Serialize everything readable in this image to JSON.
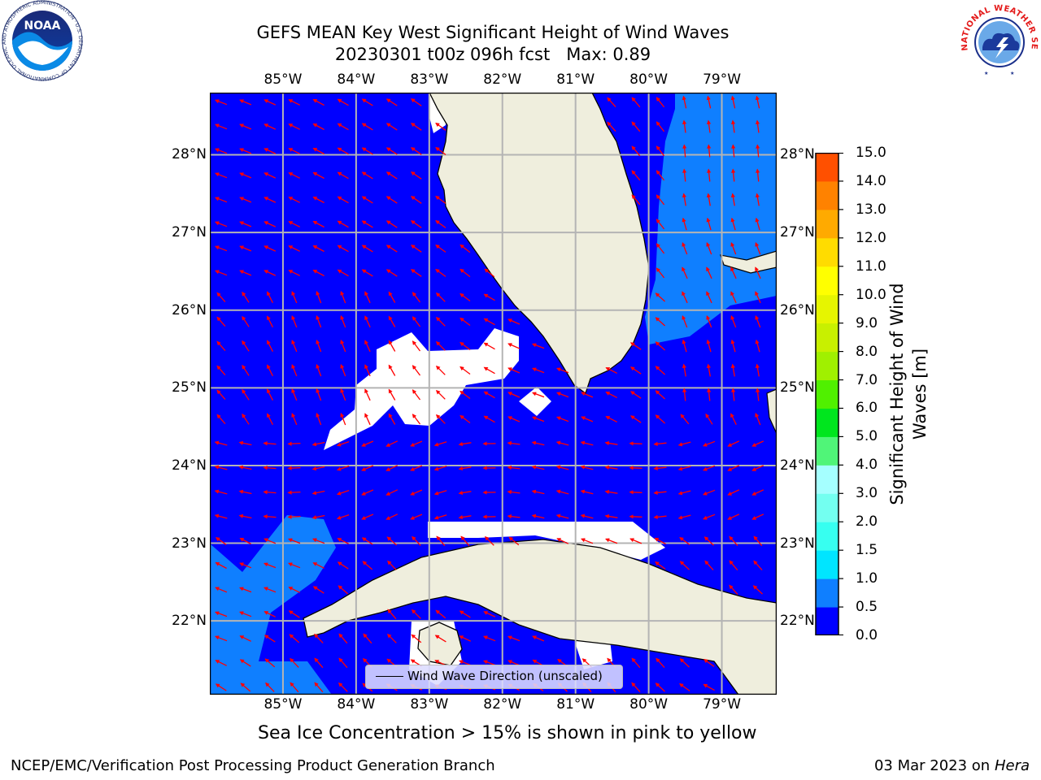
{
  "title": {
    "line1": "GEFS MEAN Key West Significant Height of Wind Waves",
    "line2": "20230301 t00z 096h fcst   Max: 0.89"
  },
  "map": {
    "lon_labels": [
      "85°W",
      "84°W",
      "83°W",
      "82°W",
      "81°W",
      "80°W",
      "79°W"
    ],
    "lat_labels": [
      "28°N",
      "27°N",
      "26°N",
      "25°N",
      "24°N",
      "23°N",
      "22°N"
    ],
    "lon_range": [
      -86.0,
      -78.25
    ],
    "lat_range": [
      21.05,
      28.8
    ],
    "ocean_color": "#0000ff",
    "wave_color": "#0f7fff",
    "land_color": "#efeedd",
    "arrow_color": "#ff0000",
    "grid_color": "#b4b4b4",
    "legend": "Wind Wave Direction (unscaled)"
  },
  "colorbar": {
    "label": "Significant Height of Wind Waves [m]",
    "levels": [
      "0.0",
      "0.5",
      "1.0",
      "1.5",
      "2.0",
      "3.0",
      "4.0",
      "5.0",
      "6.0",
      "7.0",
      "8.0",
      "9.0",
      "10.0",
      "11.0",
      "12.0",
      "13.0",
      "14.0",
      "15.0"
    ],
    "colors": [
      "#0000ff",
      "#0f7fff",
      "#00e5ff",
      "#37fff0",
      "#73fff0",
      "#a5ffff",
      "#50f578",
      "#00e61e",
      "#50f000",
      "#a0f000",
      "#c8f000",
      "#e6f500",
      "#ffff00",
      "#ffdc00",
      "#ffaa00",
      "#ff8200",
      "#ff5000",
      "#ff2800",
      "#ff0000"
    ]
  },
  "footer": {
    "ice_note": "Sea Ice Concentration > 15% is shown in pink to yellow",
    "credit": "NCEP/EMC/Verification Post Processing Product Generation Branch",
    "date": "03 Mar 2023 on",
    "host": "Hera"
  },
  "logos": {
    "noaa_text": "NOAA",
    "noaa_ring": "NATIONAL OCEANIC AND ATMOSPHERIC ADMINISTRATION · U.S. DEPARTMENT OF COMMERCE ·",
    "nws_ring": "NATIONAL WEATHER SERVICE"
  },
  "icons": [
    "noaa-logo",
    "nws-logo"
  ]
}
